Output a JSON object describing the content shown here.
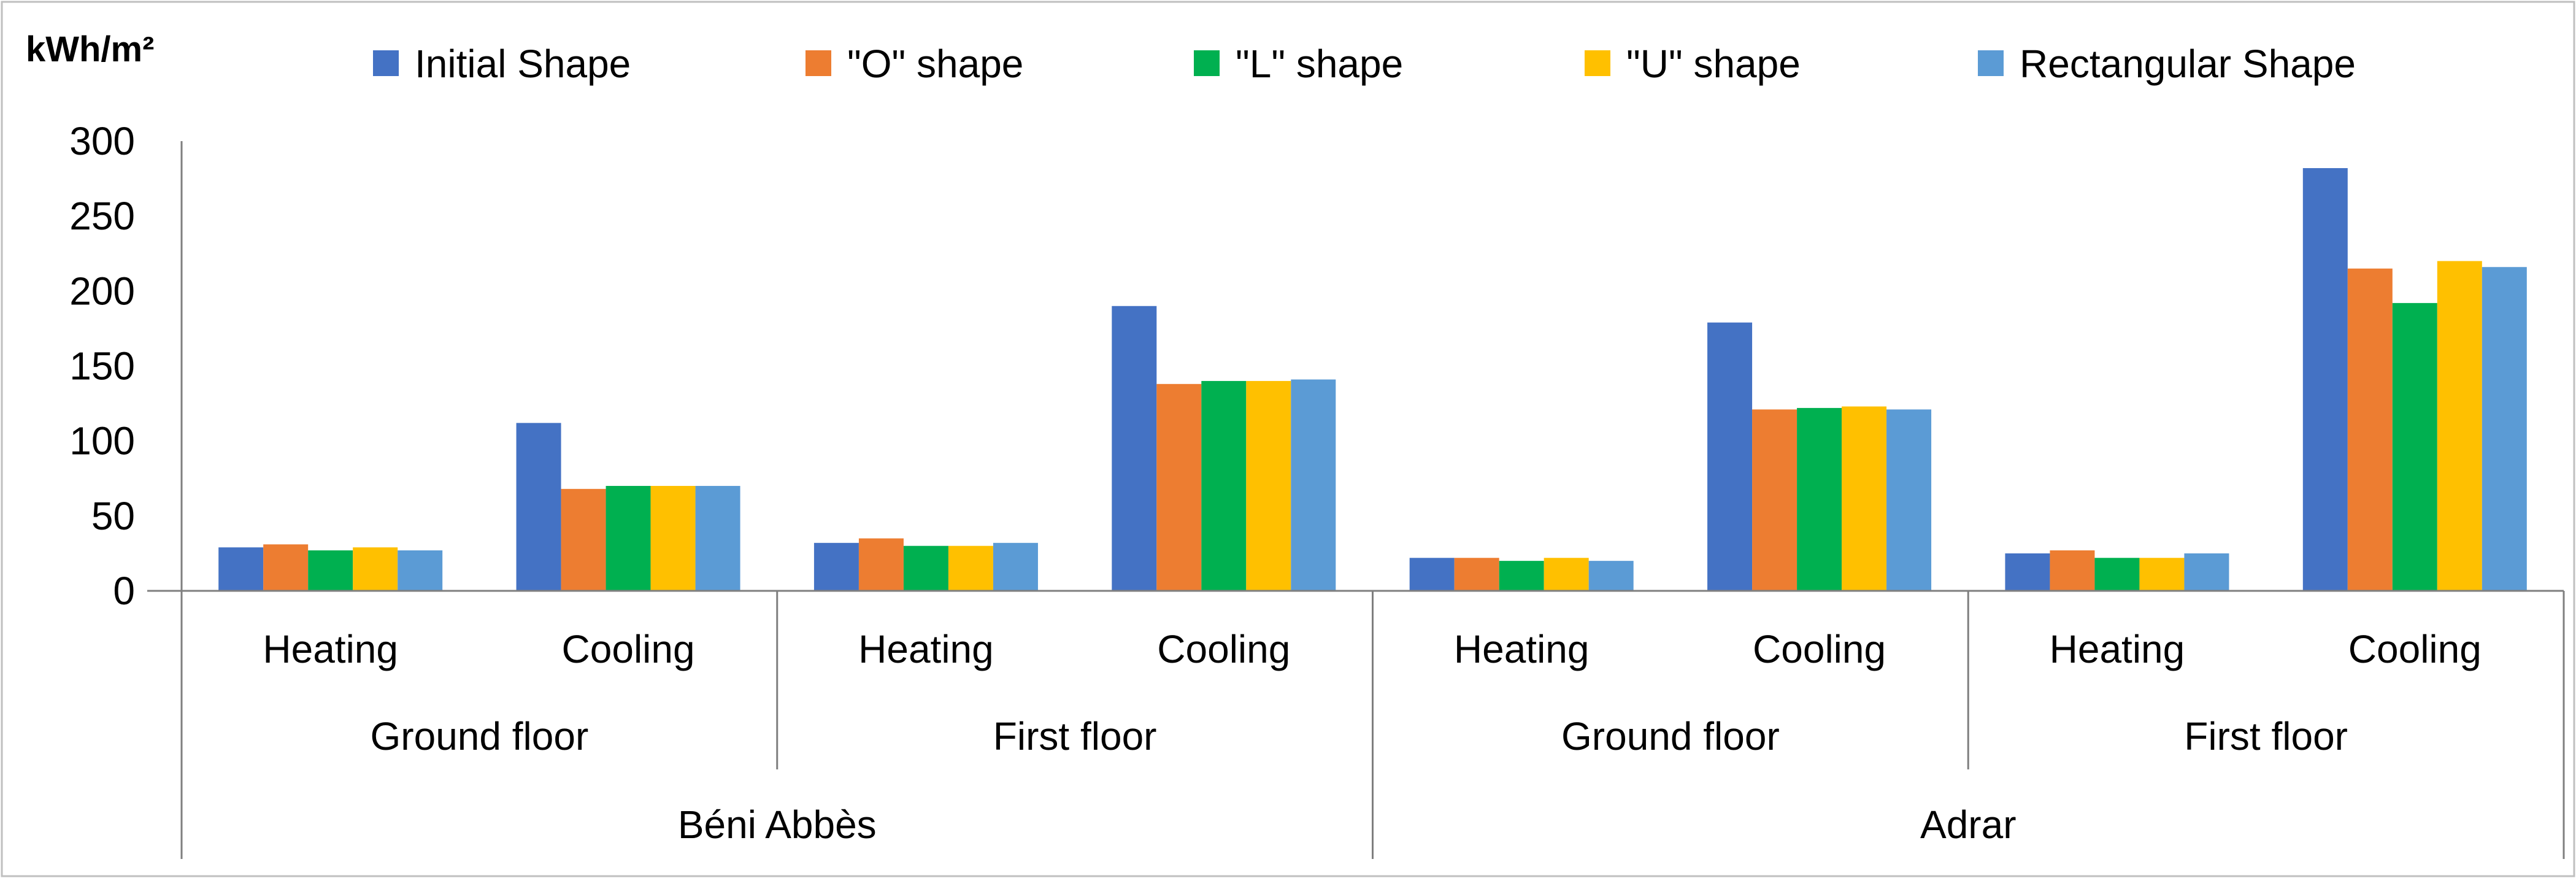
{
  "chart_data": {
    "type": "bar",
    "unit_label": "kWh/m²",
    "ylim": [
      0,
      300
    ],
    "yticks": [
      "0",
      "50",
      "100",
      "150",
      "200",
      "250",
      "300"
    ],
    "grid": false,
    "legend_position": "top",
    "colors": [
      "#4472C4",
      "#ED7D31",
      "#00B050",
      "#FFC000",
      "#5B9BD5"
    ],
    "categories": [
      {
        "label": "Heating"
      },
      {
        "label": "Cooling"
      },
      {
        "label": "Heating"
      },
      {
        "label": "Cooling"
      },
      {
        "label": "Heating"
      },
      {
        "label": "Cooling"
      },
      {
        "label": "Heating"
      },
      {
        "label": "Cooling"
      }
    ],
    "floor_groups": [
      {
        "label": "Ground floor"
      },
      {
        "label": "First floor"
      },
      {
        "label": "Ground floor"
      },
      {
        "label": "First floor"
      }
    ],
    "site_groups": [
      {
        "label": "Béni Abbès"
      },
      {
        "label": "Adrar"
      }
    ],
    "series": [
      {
        "name": "Initial Shape",
        "values": [
          29,
          112,
          32,
          190,
          22,
          179,
          25,
          282
        ]
      },
      {
        "name": "\"O\" shape",
        "values": [
          31,
          68,
          35,
          138,
          22,
          121,
          27,
          215
        ]
      },
      {
        "name": "\"L\" shape",
        "values": [
          27,
          70,
          30,
          140,
          20,
          122,
          22,
          192
        ]
      },
      {
        "name": "\"U\" shape",
        "values": [
          29,
          70,
          30,
          140,
          22,
          123,
          22,
          220
        ]
      },
      {
        "name": "Rectangular Shape",
        "values": [
          27,
          70,
          32,
          141,
          20,
          121,
          25,
          216
        ]
      }
    ]
  }
}
